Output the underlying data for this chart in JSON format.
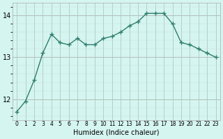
{
  "x": [
    0,
    1,
    2,
    3,
    4,
    5,
    6,
    7,
    8,
    9,
    10,
    11,
    12,
    13,
    14,
    15,
    16,
    17,
    18,
    19,
    20,
    21,
    22,
    23
  ],
  "y": [
    11.7,
    11.95,
    12.45,
    13.1,
    13.55,
    13.35,
    13.3,
    13.45,
    13.3,
    13.3,
    13.45,
    13.5,
    13.6,
    13.75,
    13.85,
    14.05,
    14.05,
    14.05,
    13.8,
    13.35,
    13.3,
    13.2,
    13.1,
    13.0
  ],
  "xlabel": "Humidex (Indice chaleur)",
  "ylabel": "",
  "title": "",
  "bg_color": "#d5f5f0",
  "line_color": "#2e7d6e",
  "marker_color": "#2e7d6e",
  "grid_color_major": "#b0c8c4",
  "grid_color_minor": "#c8e0dc",
  "yticks": [
    12,
    13,
    14
  ],
  "ylim": [
    11.5,
    14.3
  ],
  "xlim": [
    -0.5,
    23.5
  ]
}
